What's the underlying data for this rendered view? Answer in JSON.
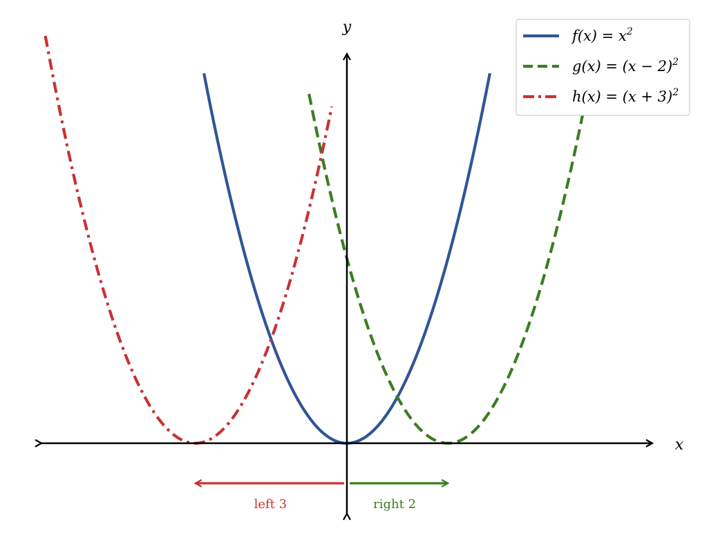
{
  "chart_data": {
    "type": "line",
    "title": "",
    "xlabel": "x",
    "ylabel": "y",
    "xlim": [
      -6,
      6.4
    ],
    "ylim": [
      -1.4,
      7.8
    ],
    "grid": false,
    "legend": "top-right",
    "series": [
      {
        "name": "f(x) = x",
        "name_sup": "2",
        "formula": "x^2",
        "x_range": [
          -2.83,
          2.83
        ],
        "color": "#2f5597",
        "style": "solid"
      },
      {
        "name": "g(x) = (x − 2)",
        "name_sup": "2",
        "formula": "(x-2)^2",
        "x_range": [
          -0.75,
          4.83
        ],
        "color": "#3a7d22",
        "style": "dashed"
      },
      {
        "name": "h(x) = (x + 3)",
        "name_sup": "2",
        "formula": "(x+3)^2",
        "x_range": [
          -5.97,
          -0.3
        ],
        "color": "#c83232",
        "style": "dashdot"
      }
    ],
    "annotations": [
      {
        "label": "left 3",
        "from": 0,
        "to": -3,
        "color": "#c83232"
      },
      {
        "label": "right 2",
        "from": 0,
        "to": 2,
        "color": "#3a7d22"
      }
    ]
  }
}
